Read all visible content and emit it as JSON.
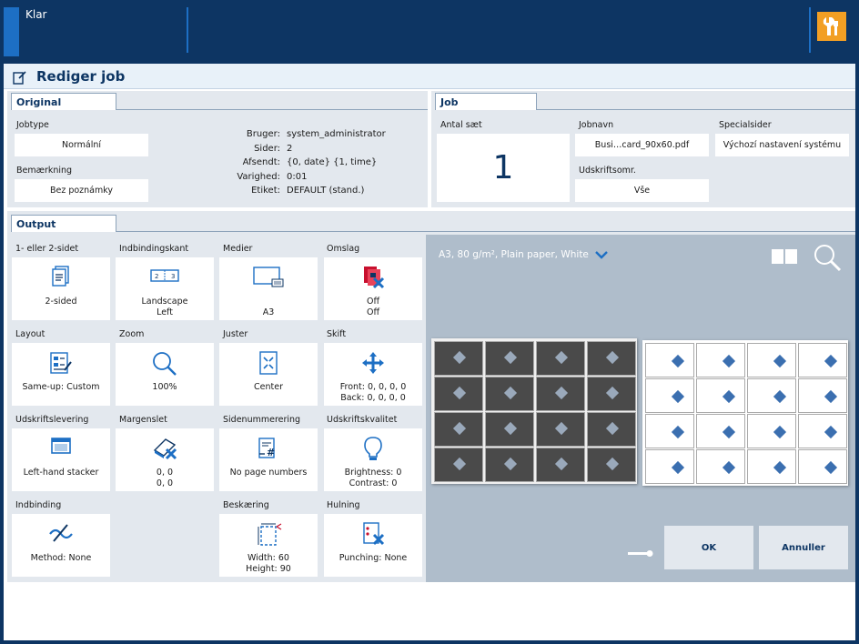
{
  "topbar": {
    "status": "Klar",
    "service_icon": "wrench-icon"
  },
  "window": {
    "title": "Rediger job"
  },
  "original": {
    "tab": "Original",
    "jobtype_label": "Jobtype",
    "jobtype_value": "Normální",
    "remark_label": "Bemærkning",
    "remark_value": "Bez poznámky",
    "info": [
      {
        "key": "Bruger:",
        "value": "system_administrator"
      },
      {
        "key": "Sider:",
        "value": "2"
      },
      {
        "key": "Afsendt:",
        "value": "{0, date} {1, time}"
      },
      {
        "key": "Varighed:",
        "value": "0:01"
      },
      {
        "key": "Etiket:",
        "value": "DEFAULT (stand.)"
      }
    ]
  },
  "job": {
    "tab": "Job",
    "sets_label": "Antal sæt",
    "sets_value": "1",
    "name_label": "Jobnavn",
    "name_value": "Busi…card_90x60.pdf",
    "range_label": "Udskriftsomr.",
    "range_value": "Vše",
    "special_label": "Specialsider",
    "special_value": "Výchozí nastavení systému"
  },
  "output": {
    "tab": "Output",
    "tiles": {
      "sides": {
        "label": "1- eller 2-sidet",
        "v1": "2-sided"
      },
      "binding_edge": {
        "label": "Indbindingskant",
        "v1": "Landscape",
        "v2": "Left"
      },
      "media": {
        "label": "Medier",
        "v1": "A3"
      },
      "cover": {
        "label": "Omslag",
        "v1": "Off",
        "v2": "Off"
      },
      "layout": {
        "label": "Layout",
        "v1": "Same-up: Custom"
      },
      "zoom": {
        "label": "Zoom",
        "v1": "100%"
      },
      "align": {
        "label": "Juster",
        "v1": "Center"
      },
      "shift": {
        "label": "Skift",
        "v1": "Front: 0, 0, 0, 0",
        "v2": "Back: 0, 0, 0, 0"
      },
      "delivery": {
        "label": "Udskriftslevering",
        "v1": "Left-hand stacker"
      },
      "margin": {
        "label": "Margenslet",
        "v1": "0, 0",
        "v2": "0, 0"
      },
      "page_numbering": {
        "label": "Sidenummerering",
        "v1": "No page numbers"
      },
      "quality": {
        "label": "Udskriftskvalitet",
        "v1": "Brightness: 0",
        "v2": "Contrast: 0"
      },
      "binding": {
        "label": "Indbinding",
        "v1": "Method: None"
      },
      "trim": {
        "label": "Beskæring",
        "v1": "Width: 60",
        "v2": "Height: 90"
      },
      "punch": {
        "label": "Hulning",
        "v1": "Punching: None"
      }
    }
  },
  "preview": {
    "media_info": "A3, 80 g/m², Plain paper, White"
  },
  "buttons": {
    "ok": "OK",
    "cancel": "Annuller"
  }
}
